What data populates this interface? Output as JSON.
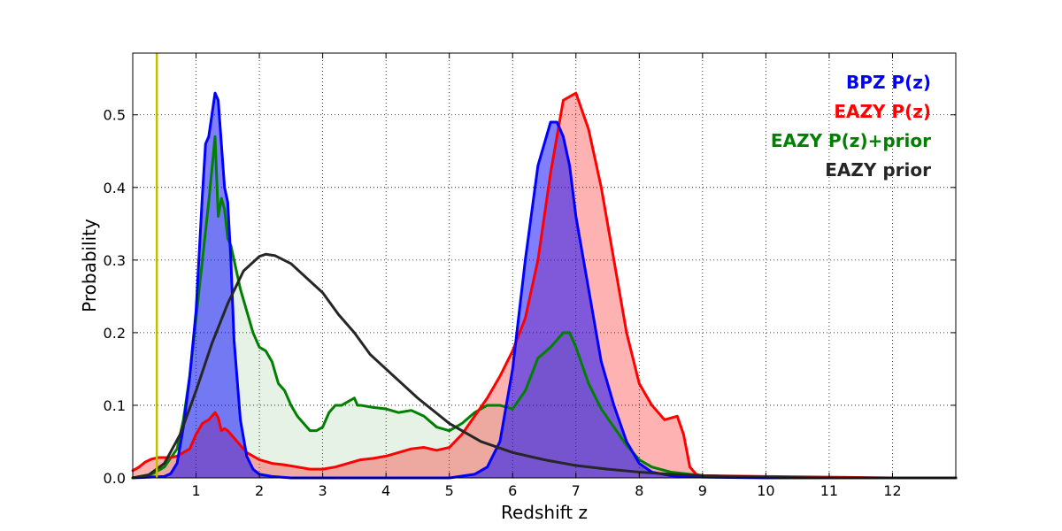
{
  "chart_data": {
    "type": "area",
    "xlabel": "Redshift z",
    "ylabel": "Probability",
    "xlim": [
      0,
      13
    ],
    "ylim": [
      0,
      0.585
    ],
    "grid": true,
    "legend_position": "top-right",
    "x_ticks": [
      1,
      2,
      3,
      4,
      5,
      6,
      7,
      8,
      9,
      10,
      11,
      12
    ],
    "x_tick_labels": [
      "1",
      "2",
      "3",
      "4",
      "5",
      "6",
      "7",
      "8",
      "9",
      "10",
      "11",
      "12"
    ],
    "y_ticks": [
      0.0,
      0.1,
      0.2,
      0.3,
      0.4,
      0.5
    ],
    "y_tick_labels": [
      "0.0",
      "0.1",
      "0.2",
      "0.3",
      "0.4",
      "0.5"
    ],
    "vertical_line": {
      "x": 0.38,
      "color": "#bfbf00"
    },
    "series": [
      {
        "name": "EAZY P(z)+prior",
        "legend_label": "EAZY P(z)+prior",
        "color": "#008000",
        "fill": "#008000",
        "fill_opacity": 0.1,
        "x": [
          0.0,
          0.3,
          0.5,
          0.7,
          0.8,
          0.9,
          1.0,
          1.1,
          1.2,
          1.3,
          1.35,
          1.4,
          1.45,
          1.5,
          1.55,
          1.6,
          1.7,
          1.8,
          1.9,
          2.0,
          2.1,
          2.2,
          2.3,
          2.4,
          2.5,
          2.6,
          2.7,
          2.8,
          2.9,
          3.0,
          3.1,
          3.2,
          3.3,
          3.4,
          3.5,
          3.55,
          3.6,
          3.8,
          4.0,
          4.2,
          4.4,
          4.6,
          4.8,
          5.0,
          5.2,
          5.4,
          5.6,
          5.8,
          6.0,
          6.2,
          6.4,
          6.6,
          6.8,
          6.9,
          7.0,
          7.2,
          7.4,
          7.6,
          7.8,
          8.0,
          8.2,
          8.5,
          8.8,
          9.0,
          9.5,
          10.0,
          11.0,
          12.0,
          13.0
        ],
        "y": [
          0.0,
          0.005,
          0.015,
          0.04,
          0.08,
          0.14,
          0.22,
          0.3,
          0.38,
          0.47,
          0.36,
          0.385,
          0.37,
          0.33,
          0.32,
          0.3,
          0.26,
          0.23,
          0.2,
          0.18,
          0.175,
          0.16,
          0.13,
          0.12,
          0.1,
          0.085,
          0.075,
          0.065,
          0.065,
          0.07,
          0.09,
          0.1,
          0.1,
          0.105,
          0.11,
          0.1,
          0.1,
          0.097,
          0.095,
          0.09,
          0.093,
          0.085,
          0.07,
          0.065,
          0.075,
          0.09,
          0.1,
          0.1,
          0.095,
          0.12,
          0.165,
          0.18,
          0.2,
          0.2,
          0.18,
          0.13,
          0.095,
          0.07,
          0.045,
          0.025,
          0.015,
          0.008,
          0.005,
          0.003,
          0.002,
          0.001,
          0.0,
          0.0,
          0.0
        ]
      },
      {
        "name": "EAZY P(z)",
        "legend_label": "EAZY P(z)",
        "color": "#ff0000",
        "fill": "#ff0000",
        "fill_opacity": 0.3,
        "x": [
          0.0,
          0.1,
          0.2,
          0.3,
          0.4,
          0.5,
          0.6,
          0.7,
          0.8,
          0.9,
          1.0,
          1.1,
          1.2,
          1.3,
          1.35,
          1.4,
          1.45,
          1.5,
          1.6,
          1.7,
          1.8,
          2.0,
          2.2,
          2.4,
          2.6,
          2.8,
          3.0,
          3.2,
          3.4,
          3.6,
          3.8,
          4.0,
          4.2,
          4.4,
          4.6,
          4.8,
          5.0,
          5.2,
          5.4,
          5.6,
          5.8,
          6.0,
          6.2,
          6.4,
          6.6,
          6.8,
          7.0,
          7.2,
          7.4,
          7.6,
          7.8,
          8.0,
          8.2,
          8.4,
          8.6,
          8.7,
          8.8,
          8.9,
          9.0,
          10.0,
          11.0,
          12.0,
          13.0
        ],
        "y": [
          0.01,
          0.015,
          0.022,
          0.026,
          0.028,
          0.028,
          0.028,
          0.03,
          0.035,
          0.04,
          0.06,
          0.075,
          0.08,
          0.09,
          0.083,
          0.065,
          0.068,
          0.065,
          0.055,
          0.045,
          0.035,
          0.025,
          0.02,
          0.018,
          0.015,
          0.012,
          0.012,
          0.015,
          0.02,
          0.025,
          0.027,
          0.03,
          0.035,
          0.04,
          0.042,
          0.038,
          0.042,
          0.06,
          0.085,
          0.11,
          0.14,
          0.175,
          0.22,
          0.3,
          0.42,
          0.52,
          0.53,
          0.48,
          0.4,
          0.3,
          0.2,
          0.13,
          0.1,
          0.08,
          0.085,
          0.06,
          0.015,
          0.005,
          0.003,
          0.002,
          0.001,
          0.0,
          0.0
        ]
      },
      {
        "name": "BPZ P(z)",
        "legend_label": "BPZ P(z)",
        "color": "#0000ff",
        "fill": "#0000ff",
        "fill_opacity": 0.5,
        "x": [
          0.0,
          0.5,
          0.6,
          0.7,
          0.8,
          0.9,
          1.0,
          1.1,
          1.15,
          1.2,
          1.25,
          1.3,
          1.35,
          1.4,
          1.45,
          1.5,
          1.55,
          1.6,
          1.7,
          1.8,
          1.9,
          2.0,
          2.2,
          2.5,
          3.0,
          4.0,
          5.0,
          5.4,
          5.6,
          5.8,
          6.0,
          6.2,
          6.4,
          6.6,
          6.7,
          6.8,
          6.9,
          7.0,
          7.2,
          7.4,
          7.6,
          7.8,
          8.0,
          8.2,
          8.5,
          9.0,
          10.0,
          11.0,
          12.0,
          13.0
        ],
        "y": [
          0.0,
          0.002,
          0.006,
          0.02,
          0.07,
          0.14,
          0.23,
          0.39,
          0.46,
          0.47,
          0.5,
          0.53,
          0.52,
          0.46,
          0.4,
          0.38,
          0.3,
          0.19,
          0.08,
          0.03,
          0.012,
          0.005,
          0.002,
          0.0,
          0.0,
          0.0,
          0.0,
          0.005,
          0.015,
          0.05,
          0.15,
          0.3,
          0.43,
          0.49,
          0.49,
          0.47,
          0.43,
          0.36,
          0.26,
          0.16,
          0.1,
          0.05,
          0.02,
          0.008,
          0.003,
          0.001,
          0.0,
          0.0,
          0.0,
          0.0
        ]
      },
      {
        "name": "EAZY prior",
        "legend_label": "EAZY prior",
        "color": "#262626",
        "fill": "none",
        "fill_opacity": 0,
        "x": [
          0.0,
          0.25,
          0.5,
          0.75,
          1.0,
          1.25,
          1.5,
          1.75,
          2.0,
          2.1,
          2.25,
          2.5,
          2.75,
          3.0,
          3.25,
          3.5,
          3.75,
          4.0,
          4.5,
          5.0,
          5.5,
          6.0,
          6.5,
          7.0,
          7.5,
          8.0,
          8.5,
          9.0,
          10.0,
          11.0,
          12.0,
          13.0
        ],
        "y": [
          0.0,
          0.004,
          0.02,
          0.06,
          0.12,
          0.185,
          0.24,
          0.285,
          0.305,
          0.308,
          0.306,
          0.295,
          0.275,
          0.255,
          0.225,
          0.2,
          0.17,
          0.15,
          0.11,
          0.075,
          0.05,
          0.035,
          0.025,
          0.017,
          0.012,
          0.008,
          0.005,
          0.003,
          0.001,
          0.0,
          0.0,
          0.0
        ]
      }
    ]
  }
}
